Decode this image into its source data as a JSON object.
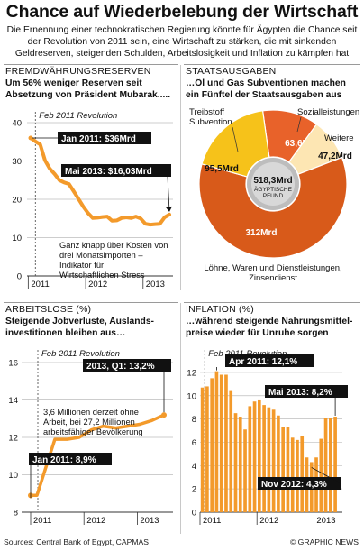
{
  "header": {
    "title": "Chance auf Wiederbelebung der Wirtschaft",
    "subtitle": "Die Ernennung einer technokratischen  Regierung könnte für Ägypten die Chance seit der Revolution von 2011 sein, eine Wirtschaft zu stärken, die mit sinkenden Geldreserven, steigenden Schulden, Arbeitslosigkeit und Inflation zu kämpfen hat"
  },
  "footer": {
    "sources": "Sources: Central Bank of Egypt, CAPMAS",
    "brand": "© GRAPHIC NEWS"
  },
  "colors": {
    "orange": "#f39a2b",
    "orange_light": "#f7b35e",
    "rust": "#d85a1a",
    "red_orange": "#e8622a",
    "yellow": "#f6c21a",
    "cream": "#fde6b3",
    "grid": "#bdbdbd",
    "label_bg": "#111111"
  },
  "chart_data": [
    {
      "type": "line",
      "panel_title": "FREMDWÄHRUNGSRESERVEN",
      "headline": "Um 56% weniger Reserven seit Absetzung von Präsident Mubarak.....",
      "x_tick_labels": [
        "2011",
        "2012",
        "2013"
      ],
      "ylim": [
        0,
        40
      ],
      "y_ticks": [
        0,
        10,
        20,
        30,
        40
      ],
      "grid": true,
      "marker_label": "Feb 2011 Revolution",
      "series": [
        {
          "values": [
            36,
            35.1,
            34.3,
            30.2,
            28,
            26.6,
            25,
            24.4,
            24,
            22.1,
            20.1,
            18.1,
            16.4,
            15.1,
            15.2,
            15.4,
            15.5,
            14.4,
            14.5,
            15.1,
            15.3,
            15.1,
            15.5,
            15,
            13.6,
            13.4,
            13.5,
            13.6,
            15.3,
            16.03
          ]
        }
      ],
      "callouts": [
        {
          "text": "Jan 2011: $36Mrd",
          "at_index": 0
        },
        {
          "text": "Mai 2013: $16,03Mrd",
          "at_index": 29
        }
      ],
      "annotation": "Ganz knapp über Kosten von drei Monatsimporten – Indikator für Wirtschaftlichen Stress"
    },
    {
      "type": "pie",
      "panel_title": "STAATSAUSGABEN",
      "headline": "…Öl und Gas Subventionen machen ein Fünftel der Staatsausgaben aus",
      "center_value": "518,3Mrd",
      "center_unit": "ÄGYPTISCHE PFUND",
      "slices": [
        {
          "label": "Sozialleistungen",
          "value": 63.6,
          "value_label": "63,6Mrd",
          "color": "#e8622a"
        },
        {
          "label": "Weitere",
          "value": 47.2,
          "value_label": "47,2Mrd",
          "color": "#fde6b3"
        },
        {
          "label": "Löhne, Waren und Dienstleistungen, Zinsendienst",
          "value": 312,
          "value_label": "312Mrd",
          "color": "#d85a1a"
        },
        {
          "label": "Treibstoff Subvention",
          "value": 95.5,
          "value_label": "95,5Mrd",
          "color": "#f6c21a"
        }
      ]
    },
    {
      "type": "line",
      "panel_title": "ARBEITSLOSE (%)",
      "headline": "Steigende Jobverluste, Auslands-investitionen bleiben aus…",
      "x_tick_labels": [
        "2011",
        "2012",
        "2013"
      ],
      "ylim": [
        8,
        16
      ],
      "y_ticks": [
        8,
        10,
        12,
        14,
        16
      ],
      "grid": true,
      "marker_label": "Feb 2011 Revolution",
      "series": [
        {
          "values": [
            8.9,
            8.9,
            11.9,
            11.9,
            12.0,
            12.4,
            12.6,
            12.5,
            12.6,
            12.7,
            12.9,
            13.2
          ]
        }
      ],
      "callouts": [
        {
          "text": "Jan 2011: 8,9%",
          "at_index": 0
        },
        {
          "text": "2013, Q1: 13,2%",
          "at_index": 11
        }
      ],
      "annotation": "3,6 Millionen derzeit ohne Arbeit, bei 27,2 Millionen arbeitsfähiger Bevölkerung"
    },
    {
      "type": "bar",
      "panel_title": "INFLATION (%)",
      "headline": "…während steigende Nahrungsmittel-preise wieder für Unruhe sorgen",
      "x_tick_labels": [
        "2011",
        "2012",
        "2013"
      ],
      "ylim": [
        0,
        13
      ],
      "y_ticks": [
        0,
        2,
        4,
        6,
        8,
        10,
        12
      ],
      "grid": true,
      "marker_label": "Feb 2011 Revolution",
      "values": [
        10.7,
        10.8,
        11.5,
        12.1,
        11.8,
        11.8,
        10.4,
        8.5,
        8.2,
        7.1,
        9.1,
        9.5,
        9.6,
        9.2,
        9.0,
        8.8,
        8.3,
        7.3,
        7.3,
        6.4,
        6.2,
        6.5,
        4.7,
        4.3,
        4.7,
        6.3,
        8.1,
        8.1,
        8.2
      ],
      "callouts": [
        {
          "text": "Apr 2011: 12,1%",
          "at_index": 3
        },
        {
          "text": "Mai 2013: 8,2%",
          "at_index": 28
        },
        {
          "text": "Nov 2012: 4,3%",
          "at_index": 23
        }
      ]
    }
  ]
}
